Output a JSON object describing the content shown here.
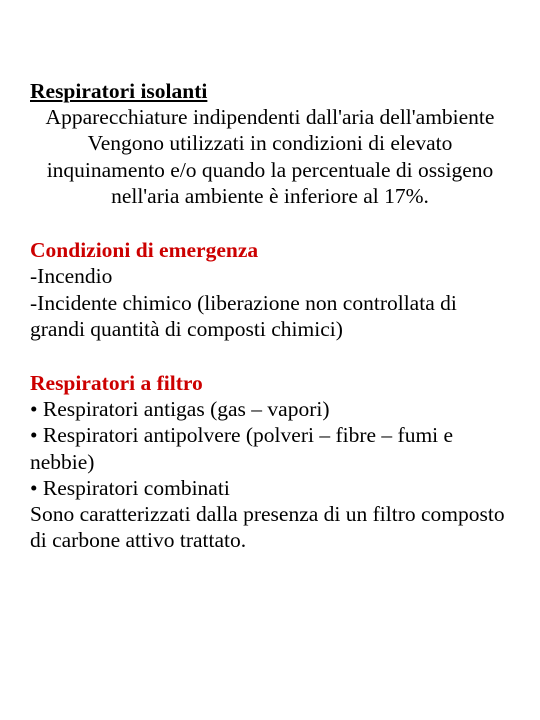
{
  "colors": {
    "background": "#ffffff",
    "text": "#000000",
    "accent": "#cc0000"
  },
  "typography": {
    "fontFamily": "Times New Roman",
    "fontSizePt": 16,
    "lineHeight": 1.22
  },
  "section1": {
    "heading": "Respiratori isolanti",
    "line1": "Apparecchiature indipendenti dall'aria dell'ambiente",
    "line2": "Vengono utilizzati in condizioni di elevato inquinamento e/o quando la percentuale di ossigeno nell'aria ambiente è inferiore al 17%."
  },
  "section2": {
    "heading": "Condizioni di emergenza",
    "item1": "-Incendio",
    "item2": "-Incidente chimico (liberazione non controllata di grandi quantità di composti chimici)"
  },
  "section3": {
    "heading": "Respiratori a filtro",
    "item1": "• Respiratori antigas (gas – vapori)",
    "item2": "• Respiratori antipolvere (polveri – fibre – fumi e nebbie)",
    "item3": "• Respiratori combinati",
    "trailing": "Sono caratterizzati dalla presenza di un filtro composto di carbone attivo trattato."
  }
}
